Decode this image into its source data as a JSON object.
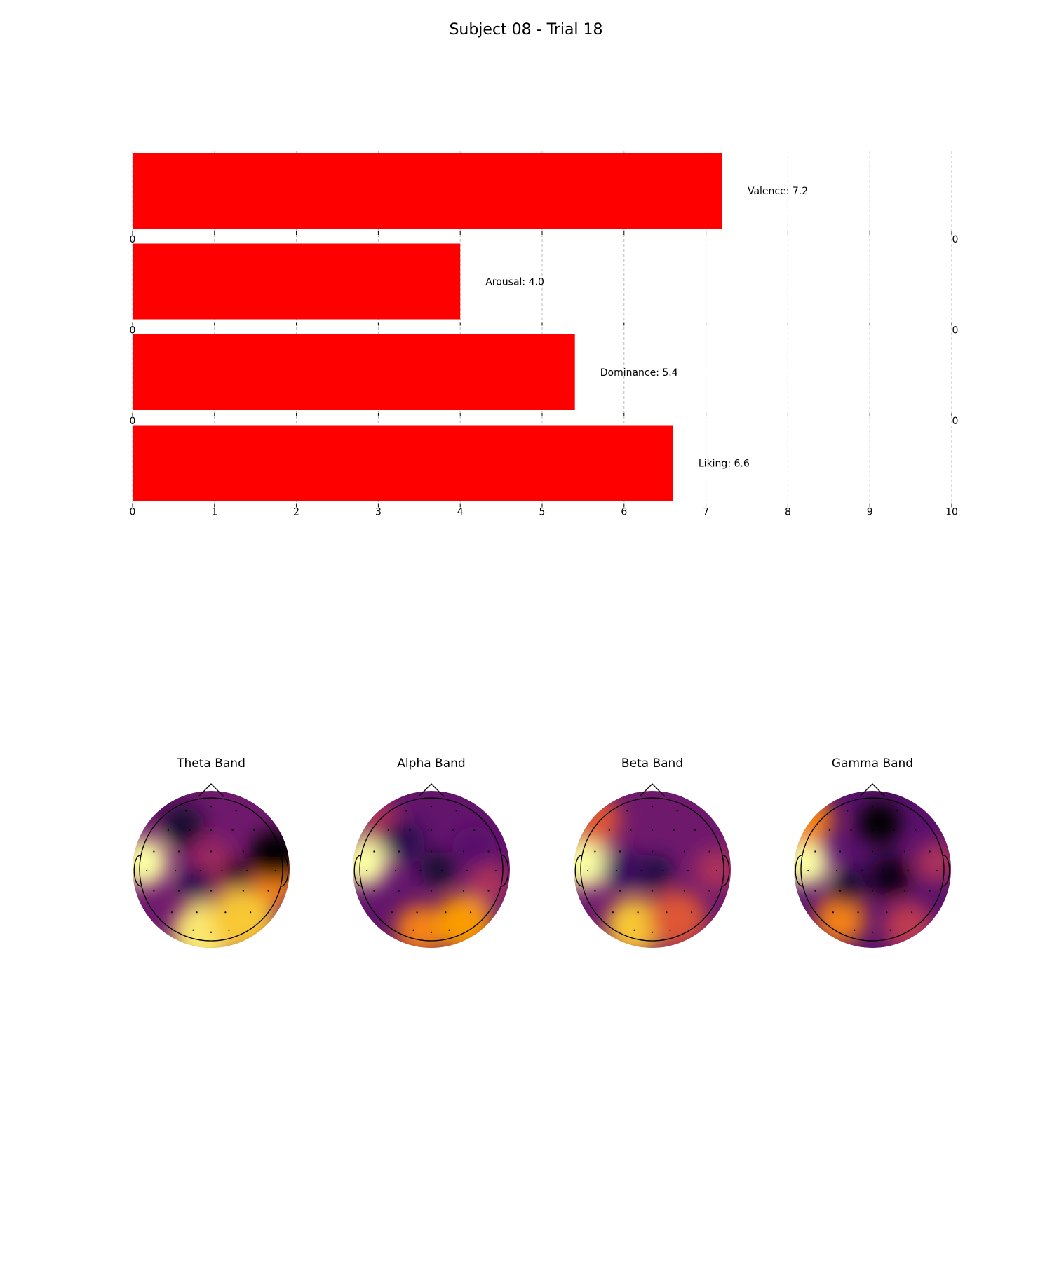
{
  "title": "Subject 08 - Trial 18",
  "colors": {
    "bar": "#ff0000",
    "grid": "#bbbbbb",
    "colormap": "inferno"
  },
  "chart_data": [
    {
      "type": "bar",
      "orientation": "horizontal",
      "categories": [
        "Valence",
        "Arousal",
        "Dominance",
        "Liking"
      ],
      "values": [
        7.2,
        4.0,
        5.4,
        6.6
      ],
      "value_labels": [
        "Valence: 7.2",
        "Arousal: 4.0",
        "Dominance: 5.4",
        "Liking: 6.6"
      ],
      "xlim": [
        0,
        10
      ],
      "xticks": [
        0,
        1,
        2,
        3,
        4,
        5,
        6,
        7,
        8,
        9,
        10
      ],
      "grid": "vertical dashed",
      "xlabel": "",
      "ylabel": ""
    },
    {
      "type": "heatmap",
      "kind": "EEG topographic map",
      "colormap": "inferno",
      "panels": [
        {
          "title": "Theta Band"
        },
        {
          "title": "Alpha Band"
        },
        {
          "title": "Beta Band"
        },
        {
          "title": "Gamma Band"
        }
      ]
    }
  ]
}
